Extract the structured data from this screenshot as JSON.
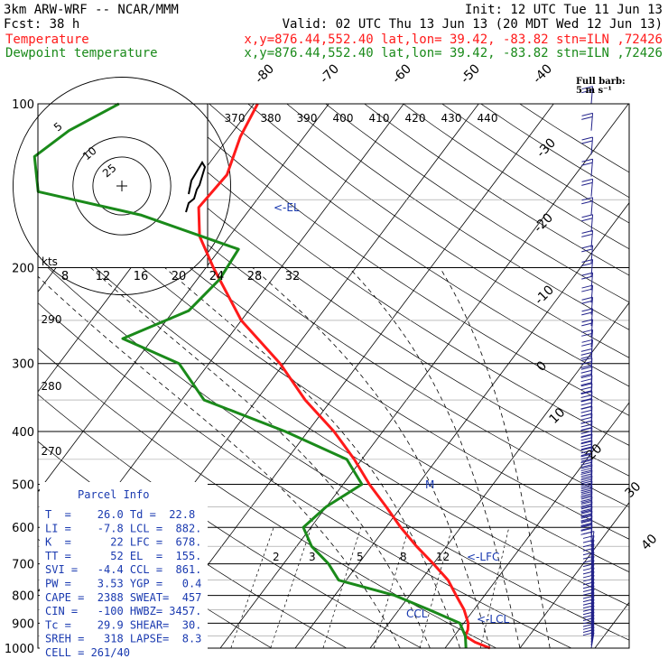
{
  "header": {
    "model": "3km ARW-WRF -- NCAR/MMM",
    "init": "Init: 12 UTC Tue 11 Jun 13",
    "fcst": "Fcst:   38 h",
    "valid": "Valid: 02 UTC Thu 13 Jun 13 (20 MDT Wed 12 Jun 13)",
    "temp_name": "Temperature",
    "temp_info": "x,y=876.44,552.40   lat,lon= 39.42, -83.82  stn=ILN ,72426",
    "dew_name": "Dewpoint temperature",
    "dew_info": "x,y=876.44,552.40   lat,lon= 39.42, -83.82  stn=ILN ,72426"
  },
  "colors": {
    "temperature": "#ff1a1a",
    "dewpoint": "#1a8a1a",
    "info": "#1a3ab0",
    "barbs": "#22228a"
  },
  "chart_data": {
    "type": "line",
    "y_label_units": "hPa",
    "pressure_ticks": [
      "100",
      "200",
      "300",
      "400",
      "500",
      "600",
      "700",
      "800",
      "900",
      "1000"
    ],
    "isotherm_labels": [
      "-80",
      "-70",
      "-60",
      "-50",
      "-40",
      "-30",
      "-20",
      "-10",
      "0",
      "10",
      "20",
      "30",
      "40"
    ],
    "theta_labels": [
      "370",
      "380",
      "390",
      "400",
      "410",
      "420",
      "430",
      "440"
    ],
    "theta_left_labels": [
      "290",
      "280",
      "270"
    ],
    "mixing_ratio_labels": [
      "2",
      "3",
      "5",
      "8",
      "12"
    ],
    "hodograph": {
      "rings": [
        "5",
        "10",
        "25"
      ],
      "speed_ticks": [
        "8",
        "12",
        "16",
        "20",
        "24",
        "28",
        "32"
      ],
      "speed_unit": "kts"
    },
    "barb_legend": "Full barb:\n5 m s⁻¹",
    "annotations": {
      "el": "<-EL",
      "lfc": "<-LFC",
      "lcl": "<-LCL",
      "ccl": "CCL",
      "m": "M"
    },
    "series": [
      {
        "name": "Temperature",
        "points": [
          {
            "p": 1000,
            "t": 26.0
          },
          {
            "p": 975,
            "t": 23.4
          },
          {
            "p": 950,
            "t": 21.5
          },
          {
            "p": 925,
            "t": 21.2
          },
          {
            "p": 900,
            "t": 20.6
          },
          {
            "p": 850,
            "t": 18.7
          },
          {
            "p": 800,
            "t": 16.2
          },
          {
            "p": 750,
            "t": 13.6
          },
          {
            "p": 700,
            "t": 10.0
          },
          {
            "p": 650,
            "t": 6.0
          },
          {
            "p": 600,
            "t": 2.0
          },
          {
            "p": 550,
            "t": -2.0
          },
          {
            "p": 500,
            "t": -6.5
          },
          {
            "p": 450,
            "t": -11.0
          },
          {
            "p": 400,
            "t": -16.5
          },
          {
            "p": 350,
            "t": -23.5
          },
          {
            "p": 300,
            "t": -30.5
          },
          {
            "p": 250,
            "t": -40.0
          },
          {
            "p": 200,
            "t": -49.0
          },
          {
            "p": 175,
            "t": -54.0
          },
          {
            "p": 155,
            "t": -57.0
          },
          {
            "p": 135,
            "t": -56.5
          },
          {
            "p": 115,
            "t": -58.5
          },
          {
            "p": 100,
            "t": -59.5
          }
        ]
      },
      {
        "name": "Dewpoint temperature",
        "points": [
          {
            "p": 1000,
            "t": 22.8
          },
          {
            "p": 950,
            "t": 21.5
          },
          {
            "p": 900,
            "t": 19.5
          },
          {
            "p": 850,
            "t": 14.0
          },
          {
            "p": 800,
            "t": 8.0
          },
          {
            "p": 750,
            "t": -1.0
          },
          {
            "p": 700,
            "t": -4.0
          },
          {
            "p": 650,
            "t": -8.0
          },
          {
            "p": 600,
            "t": -11.0
          },
          {
            "p": 550,
            "t": -10.0
          },
          {
            "p": 500,
            "t": -7.5
          },
          {
            "p": 450,
            "t": -12.0
          },
          {
            "p": 400,
            "t": -23.0
          },
          {
            "p": 350,
            "t": -37.0
          },
          {
            "p": 300,
            "t": -44.0
          },
          {
            "p": 270,
            "t": -54.0
          },
          {
            "p": 240,
            "t": -48.0
          },
          {
            "p": 210,
            "t": -47.0
          },
          {
            "p": 185,
            "t": -47.5
          },
          {
            "p": 160,
            "t": -64.0
          },
          {
            "p": 145,
            "t": -80.0
          },
          {
            "p": 125,
            "t": -84.0
          },
          {
            "p": 112,
            "t": -82.0
          },
          {
            "p": 100,
            "t": -78.0
          }
        ]
      }
    ]
  },
  "parcel_info": {
    "title": "Parcel Info",
    "rows": [
      "T  =    26.0 Td =  22.8",
      "LI =    -7.8 LCL =  882.",
      "K  =      22 LFC =  678.",
      "TT =      52 EL  =  155.",
      "SVI =   -4.4 CCL =  861.",
      "PW =    3.53 YGP =   0.4",
      "CAPE =  2388 SWEAT=  457",
      "CIN =   -100 HWBZ= 3457.",
      "Tc =    29.9 SHEAR=  30.",
      "SREH =   318 LAPSE=  8.3",
      "CELL = 261/40"
    ]
  }
}
